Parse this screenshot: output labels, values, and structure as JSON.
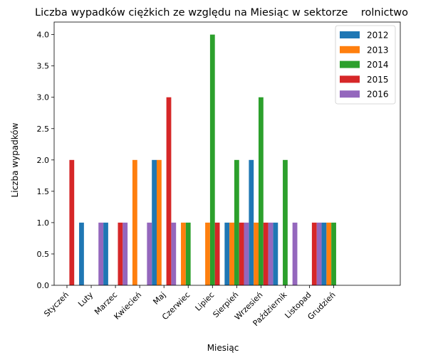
{
  "chart_data": {
    "type": "bar",
    "title": "Liczba wypadków ciężkich ze względu na Miesiąc w sektorze    rolnictwo",
    "xlabel": "Miesiąc",
    "ylabel": "Liczba wypadków",
    "ylim": [
      0,
      4.2
    ],
    "yticks": [
      "0.0",
      "0.5",
      "1.0",
      "1.5",
      "2.0",
      "2.5",
      "3.0",
      "3.5",
      "4.0"
    ],
    "grid": false,
    "legend_position": "top-right",
    "categories": [
      "Styczeń",
      "Luty",
      "Marzec",
      "Kwiecień",
      "Maj",
      "Czerwiec",
      "Lipiec",
      "Sierpień",
      "Wrzesień",
      "Październik",
      "Listopad",
      "Grudzień"
    ],
    "series": [
      {
        "name": "2012",
        "color": "#1f77b4",
        "values": [
          0,
          1,
          1,
          0,
          2,
          0,
          0,
          1,
          2,
          1,
          0,
          1
        ]
      },
      {
        "name": "2013",
        "color": "#ff7f0e",
        "values": [
          0,
          0,
          0,
          2,
          2,
          1,
          1,
          1,
          1,
          0,
          0,
          1
        ]
      },
      {
        "name": "2014",
        "color": "#2ca02c",
        "values": [
          0,
          0,
          0,
          0,
          0,
          1,
          4,
          2,
          3,
          2,
          0,
          1
        ]
      },
      {
        "name": "2015",
        "color": "#d62728",
        "values": [
          2,
          0,
          1,
          0,
          3,
          0,
          1,
          1,
          1,
          0,
          1,
          0
        ]
      },
      {
        "name": "2016",
        "color": "#9467bd",
        "values": [
          0,
          1,
          1,
          1,
          1,
          0,
          0,
          1,
          1,
          1,
          1,
          0
        ]
      }
    ]
  }
}
